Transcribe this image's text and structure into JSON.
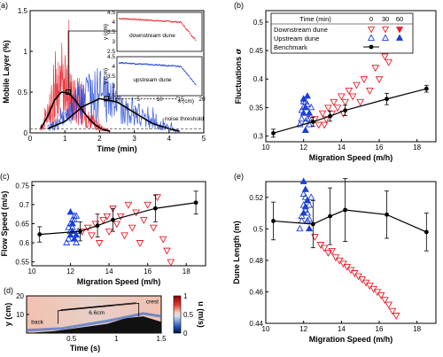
{
  "chart_data": [
    {
      "panel": "(a)",
      "type": "line",
      "xlabel": "Time (min)",
      "ylabel": "Mobile Layer (%)",
      "xlim": [
        0,
        5
      ],
      "ylim": [
        0,
        1.5
      ],
      "xticks": [
        0,
        1,
        2,
        3,
        4,
        5
      ],
      "yticks": [
        0,
        0.5,
        1,
        1.5
      ],
      "annotations": [
        "noise threshold"
      ],
      "series": [
        {
          "color": "#e8202a",
          "x": [
            0.3,
            0.5,
            0.7,
            0.9,
            1.1,
            1.3,
            1.5,
            1.7,
            1.9,
            2.1,
            2.3
          ],
          "y": [
            0.05,
            0.2,
            0.4,
            0.52,
            0.5,
            0.35,
            0.25,
            0.15,
            0.08,
            0.04,
            0.02
          ]
        },
        {
          "color": "#1a3fd6",
          "x": [
            0.5,
            1.0,
            1.5,
            2.0,
            2.5,
            3.0,
            3.5,
            4.0,
            4.3
          ],
          "y": [
            0.05,
            0.15,
            0.35,
            0.43,
            0.36,
            0.22,
            0.12,
            0.05,
            0.02
          ]
        }
      ],
      "smooth": [
        {
          "x": [
            0.3,
            0.5,
            0.7,
            0.9,
            1.1,
            1.3,
            1.5,
            1.7,
            1.9,
            2.1,
            2.3
          ],
          "y": [
            0.05,
            0.2,
            0.4,
            0.5,
            0.49,
            0.4,
            0.28,
            0.17,
            0.09,
            0.04,
            0.02
          ]
        },
        {
          "x": [
            0.5,
            1.0,
            1.5,
            2.0,
            2.5,
            3.0,
            3.5,
            4.0,
            4.3
          ],
          "y": [
            0.05,
            0.14,
            0.32,
            0.42,
            0.38,
            0.25,
            0.12,
            0.05,
            0.02
          ]
        }
      ],
      "threshold": 0.05,
      "insets": [
        {
          "label": "downstream dune",
          "ylabel": "y (cm)",
          "color": "#e8202a",
          "xlim": [
            0,
            20
          ],
          "ylim": [
            2.5,
            4.5
          ],
          "yticks": [
            2.5,
            3,
            3.5,
            4,
            4.5
          ]
        },
        {
          "label": "upstream dune",
          "ylabel": "y (cm)",
          "xlabel": "x (cm)",
          "color": "#1a3fd6",
          "xlim": [
            0,
            20
          ],
          "ylim": [
            2.5,
            4.5
          ],
          "xticks": [
            0,
            5,
            10,
            15,
            20
          ],
          "yticks": [
            2.5,
            3,
            3.5,
            4,
            4.5
          ]
        }
      ]
    },
    {
      "panel": "(b)",
      "type": "scatter",
      "xlabel": "Migration Speed (m/h)",
      "ylabel": "Fluctuations",
      "ylabel_symbol": "σ",
      "xlim": [
        10,
        19
      ],
      "ylim": [
        0.29,
        0.52
      ],
      "xticks": [
        10,
        12,
        14,
        16,
        18
      ],
      "yticks": [
        0.3,
        0.35,
        0.4,
        0.45,
        0.5
      ],
      "legend": {
        "header": "Time (min)",
        "times": [
          "0",
          "30",
          "60"
        ],
        "entries": [
          "Downstream dune",
          "Upstream dune",
          "Benchmark"
        ],
        "position": "top"
      },
      "benchmark": {
        "x": [
          10.4,
          12.5,
          13.4,
          14.2,
          16.4,
          18.5
        ],
        "y": [
          0.305,
          0.325,
          0.335,
          0.345,
          0.365,
          0.383
        ],
        "err": [
          0.007,
          0.008,
          0.009,
          0.009,
          0.01,
          0.006
        ]
      },
      "downstream": {
        "x": [
          12.6,
          12.8,
          13.0,
          13.1,
          13.2,
          13.3,
          13.5,
          13.6,
          13.8,
          14.0,
          14.1,
          14.2,
          14.4,
          14.6,
          14.8,
          15.0,
          15.2,
          15.5,
          15.8,
          16.0,
          16.3,
          16.5,
          16.8,
          17.0,
          17.2
        ],
        "y": [
          0.33,
          0.32,
          0.34,
          0.32,
          0.33,
          0.35,
          0.34,
          0.36,
          0.35,
          0.37,
          0.34,
          0.36,
          0.38,
          0.37,
          0.39,
          0.36,
          0.4,
          0.38,
          0.42,
          0.4,
          0.44,
          0.43,
          0.47,
          0.49,
          0.505
        ]
      },
      "upstream": {
        "x": [
          11.8,
          11.9,
          12.0,
          12.0,
          12.1,
          12.1,
          12.2,
          12.2,
          12.3,
          12.3,
          12.4,
          12.0,
          11.9,
          12.1,
          12.2,
          12.0,
          12.3,
          12.1
        ],
        "y": [
          0.32,
          0.33,
          0.34,
          0.35,
          0.36,
          0.31,
          0.33,
          0.355,
          0.34,
          0.32,
          0.35,
          0.365,
          0.345,
          0.325,
          0.37,
          0.36,
          0.33,
          0.35
        ]
      }
    },
    {
      "panel": "(c)",
      "type": "scatter",
      "xlabel": "Migration Speed (m/h)",
      "ylabel": "Flow Speed (m/s)",
      "xlim": [
        10,
        19
      ],
      "ylim": [
        0.54,
        0.76
      ],
      "xticks": [
        10,
        12,
        14,
        16,
        18
      ],
      "yticks": [
        0.55,
        0.6,
        0.65,
        0.7,
        0.75
      ],
      "benchmark": {
        "x": [
          10.4,
          12.5,
          13.4,
          14.2,
          16.4,
          18.5
        ],
        "y": [
          0.622,
          0.63,
          0.645,
          0.66,
          0.69,
          0.705
        ],
        "err": [
          0.02,
          0.025,
          0.03,
          0.03,
          0.035,
          0.03
        ]
      },
      "downstream": {
        "x": [
          12.6,
          12.9,
          13.1,
          13.3,
          13.5,
          13.7,
          13.9,
          14.0,
          14.2,
          14.4,
          14.6,
          14.8,
          15.0,
          15.2,
          15.4,
          15.6,
          15.8,
          16.0,
          16.3,
          16.5,
          16.8,
          17.0,
          17.2
        ],
        "y": [
          0.63,
          0.64,
          0.62,
          0.65,
          0.6,
          0.66,
          0.67,
          0.63,
          0.69,
          0.65,
          0.67,
          0.62,
          0.7,
          0.64,
          0.68,
          0.6,
          0.66,
          0.7,
          0.64,
          0.72,
          0.61,
          0.58,
          0.55
        ]
      },
      "upstream": {
        "x": [
          11.8,
          11.9,
          12.0,
          12.0,
          12.1,
          12.1,
          12.2,
          12.2,
          12.3,
          12.3,
          12.4,
          12.0,
          11.9,
          12.1,
          12.2,
          12.0,
          12.3,
          12.1
        ],
        "y": [
          0.6,
          0.61,
          0.62,
          0.63,
          0.64,
          0.65,
          0.66,
          0.67,
          0.62,
          0.6,
          0.63,
          0.68,
          0.64,
          0.66,
          0.61,
          0.65,
          0.67,
          0.63
        ]
      }
    },
    {
      "panel": "(d)",
      "type": "heatmap",
      "xlabel": "Time (s)",
      "ylabel": "y (cm)",
      "xlim": [
        0,
        1.5
      ],
      "ylim": [
        0,
        20
      ],
      "xticks": [
        0.5,
        1,
        1.5
      ],
      "yticks": [
        10,
        20
      ],
      "colorbar": {
        "label": "u (m/s)",
        "ticks": [
          1,
          0.5,
          0
        ]
      },
      "annotations": [
        "back",
        "crest",
        "6.6cm"
      ]
    },
    {
      "panel": "(e)",
      "type": "scatter",
      "xlabel": "Migration Speed (m/h)",
      "ylabel": "Dune Length (m)",
      "xlim": [
        10,
        19
      ],
      "ylim": [
        0.44,
        0.53
      ],
      "xticks": [
        10,
        12,
        14,
        16,
        18
      ],
      "yticks": [
        0.44,
        0.46,
        0.48,
        0.5,
        0.52
      ],
      "benchmark": {
        "x": [
          10.4,
          12.5,
          13.4,
          14.2,
          16.4,
          18.5
        ],
        "y": [
          0.505,
          0.503,
          0.508,
          0.512,
          0.509,
          0.498
        ],
        "err": [
          0.012,
          0.015,
          0.018,
          0.02,
          0.015,
          0.012
        ]
      },
      "downstream": {
        "x": [
          12.6,
          12.9,
          13.1,
          13.3,
          13.5,
          13.7,
          13.9,
          14.1,
          14.3,
          14.5,
          14.7,
          14.9,
          15.1,
          15.3,
          15.5,
          15.7,
          15.9,
          16.1,
          16.3,
          16.5,
          16.7,
          16.9
        ],
        "y": [
          0.495,
          0.49,
          0.488,
          0.485,
          0.486,
          0.482,
          0.48,
          0.478,
          0.476,
          0.474,
          0.472,
          0.47,
          0.468,
          0.466,
          0.464,
          0.462,
          0.46,
          0.458,
          0.455,
          0.452,
          0.448,
          0.445
        ]
      },
      "upstream": {
        "x": [
          11.8,
          11.9,
          12.0,
          12.0,
          12.1,
          12.1,
          12.2,
          12.2,
          12.3,
          12.3,
          12.4,
          12.0,
          11.9,
          12.1,
          12.2,
          12.0,
          12.3,
          12.1
        ],
        "y": [
          0.5,
          0.505,
          0.51,
          0.515,
          0.52,
          0.525,
          0.51,
          0.505,
          0.5,
          0.515,
          0.52,
          0.53,
          0.508,
          0.512,
          0.518,
          0.522,
          0.506,
          0.514
        ]
      }
    }
  ],
  "colors": {
    "downstream": "#e8202a",
    "upstream": "#1a3fd6",
    "benchmark": "#000000"
  }
}
